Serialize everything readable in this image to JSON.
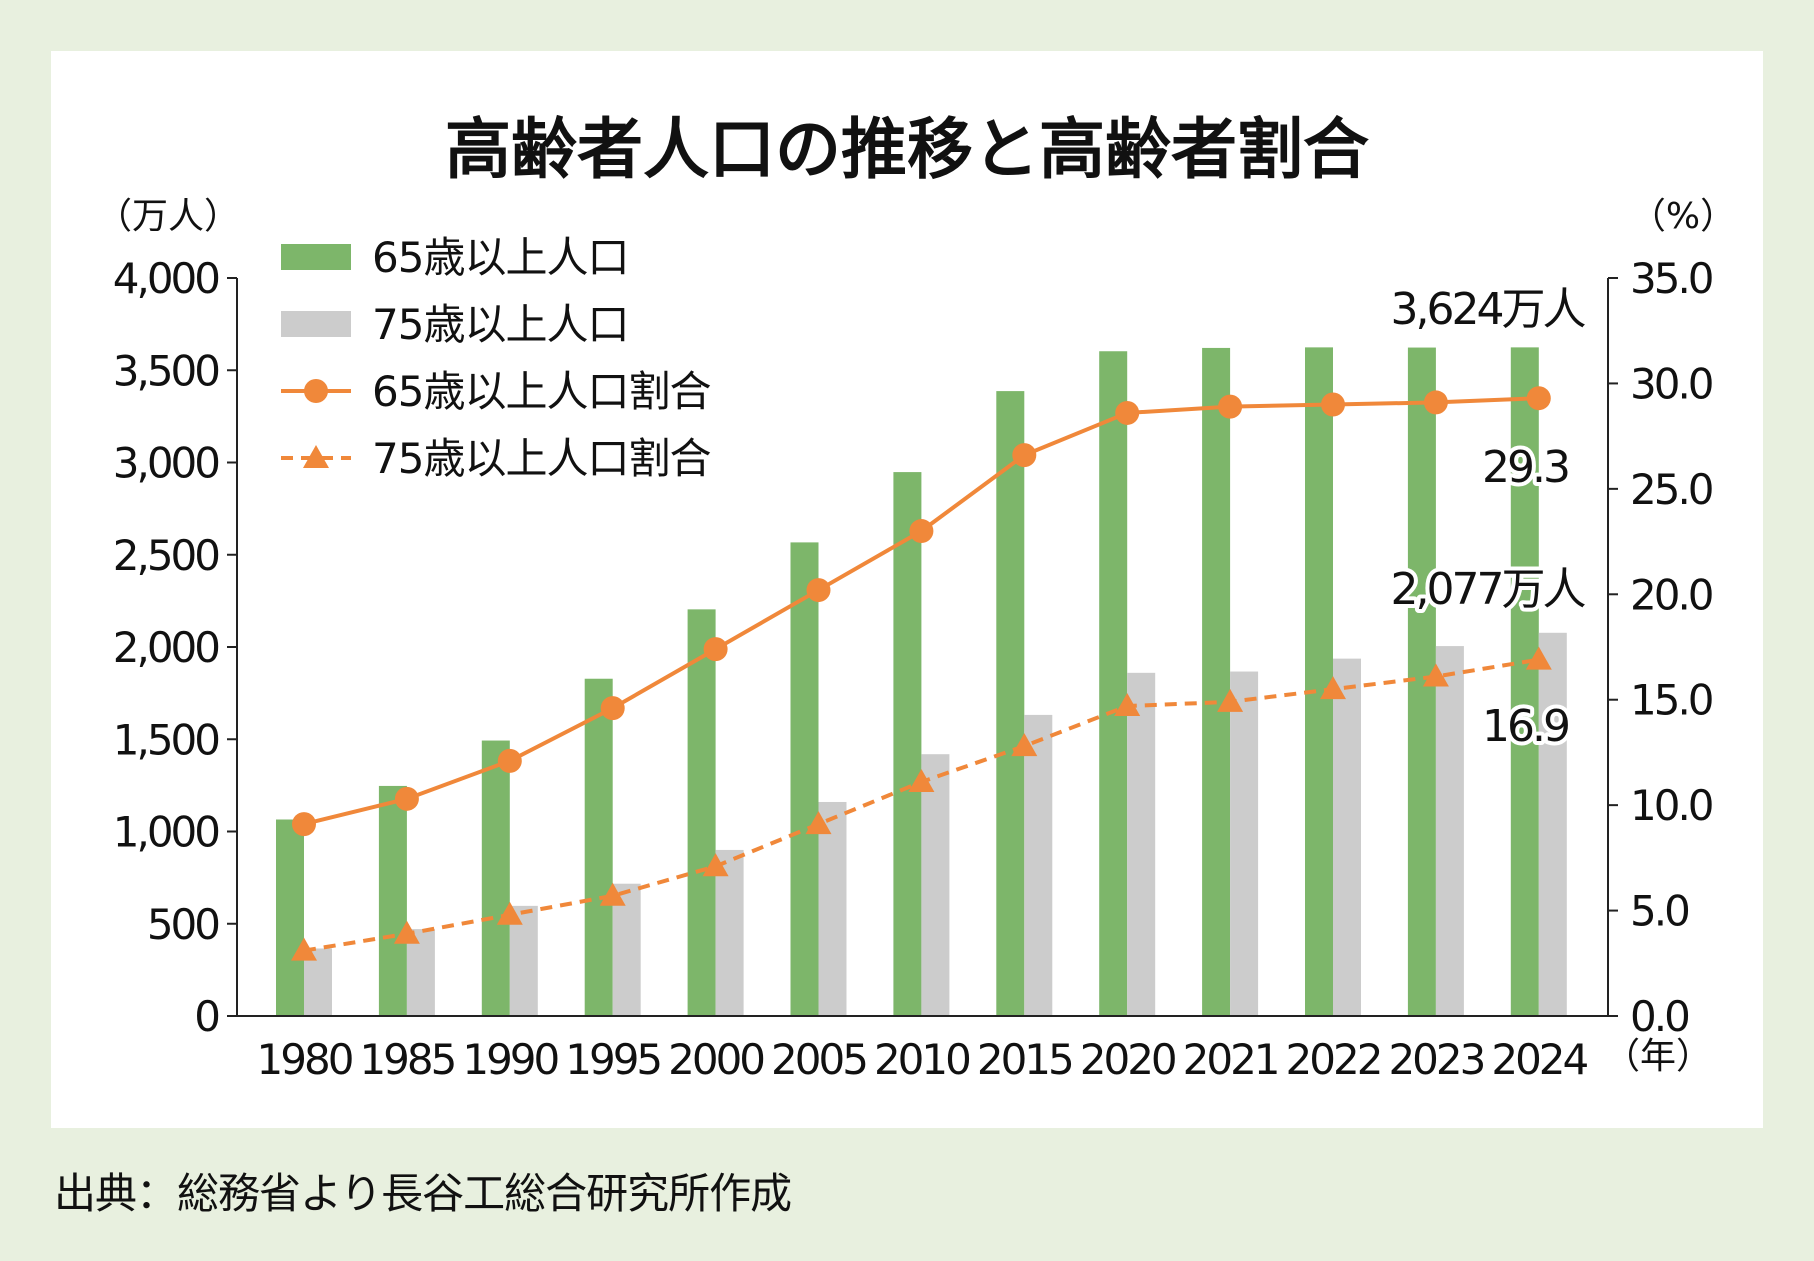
{
  "chart_data": {
    "type": "bar",
    "title": "高齢者人口の推移と高齢者割合",
    "ylabel": "（万人）",
    "y2label": "（%）",
    "xlabel": "（年）",
    "ylim": [
      0,
      4000
    ],
    "y2lim": [
      0,
      35
    ],
    "yticks": [
      "0",
      "500",
      "1,000",
      "1,500",
      "2,000",
      "2,500",
      "3,000",
      "3,500",
      "4,000"
    ],
    "y2ticks": [
      "0.0",
      "5.0",
      "10.0",
      "15.0",
      "20.0",
      "25.0",
      "30.0",
      "35.0"
    ],
    "categories": [
      "1980",
      "1985",
      "1990",
      "1995",
      "2000",
      "2005",
      "2010",
      "2015",
      "2020",
      "2021",
      "2022",
      "2023",
      "2024"
    ],
    "series": [
      {
        "name": "65歳以上人口",
        "type": "bar",
        "axis": "left",
        "color": "#7db66a",
        "values": [
          1065,
          1247,
          1493,
          1828,
          2204,
          2567,
          2948,
          3387,
          3603,
          3621,
          3624,
          3623,
          3624
        ]
      },
      {
        "name": "75歳以上人口",
        "type": "bar",
        "axis": "left",
        "color": "#cccccc",
        "values": [
          366,
          471,
          597,
          717,
          900,
          1160,
          1419,
          1632,
          1860,
          1867,
          1937,
          2005,
          2077
        ]
      },
      {
        "name": "65歳以上人口割合",
        "type": "line",
        "axis": "right",
        "color": "#f0883a",
        "marker": "circle",
        "dash": false,
        "values": [
          9.1,
          10.3,
          12.1,
          14.6,
          17.4,
          20.2,
          23.0,
          26.6,
          28.6,
          28.9,
          29.0,
          29.1,
          29.3
        ]
      },
      {
        "name": "75歳以上人口割合",
        "type": "line",
        "axis": "right",
        "color": "#f0883a",
        "marker": "triangle",
        "dash": true,
        "values": [
          3.1,
          3.9,
          4.8,
          5.7,
          7.1,
          9.1,
          11.1,
          12.8,
          14.7,
          14.9,
          15.5,
          16.1,
          16.9
        ]
      }
    ],
    "annotations": [
      "3,624万人",
      "29.3",
      "2,077万人",
      "16.9"
    ],
    "legend_placement": "top-left",
    "grid": false
  },
  "source": "出典：総務省より長谷工総合研究所作成"
}
